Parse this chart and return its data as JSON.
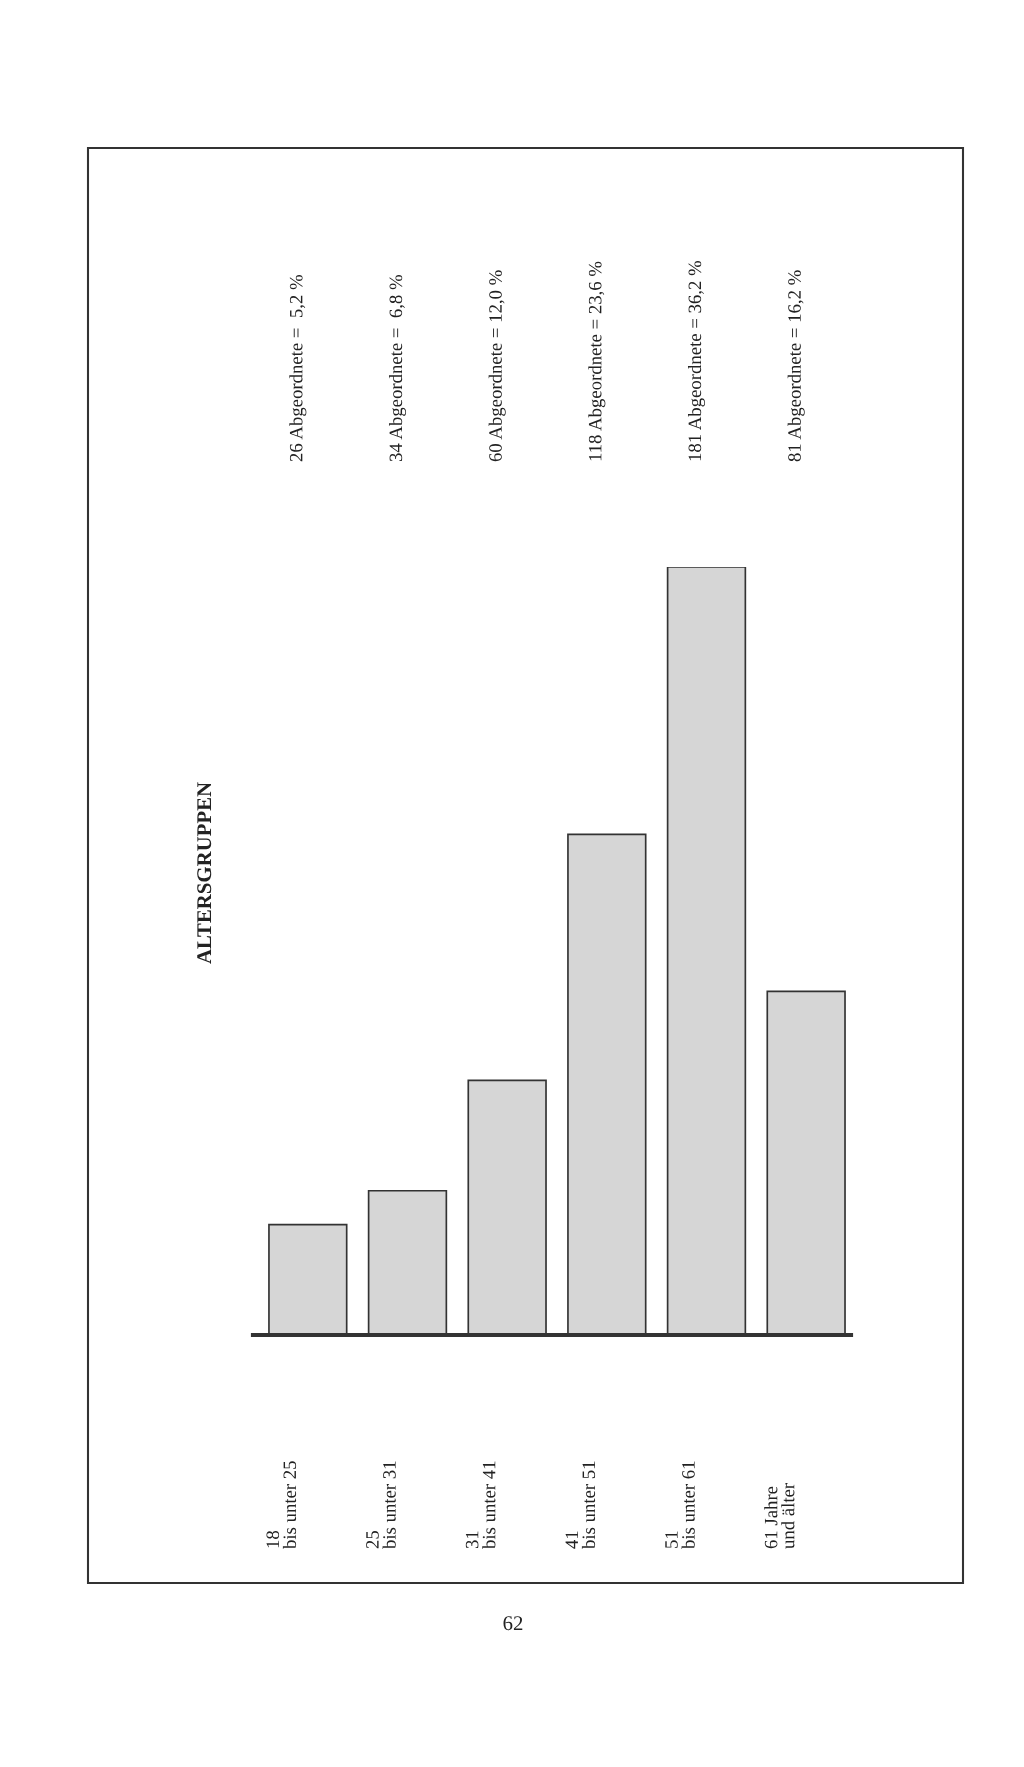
{
  "chart_data": {
    "type": "bar",
    "title": "ALTERSGRUPPEN",
    "categories": [
      "18\nbis unter 25",
      "25\nbis unter 31",
      "31\nbis unter 41",
      "41\nbis unter 51",
      "51\nbis unter 61",
      "61 Jahre\nund älter"
    ],
    "values": [
      26,
      34,
      60,
      118,
      181,
      81
    ],
    "value_labels": [
      "26 Abgeordnete =  5,2 %",
      "34 Abgeordnete =  6,8 %",
      "60 Abgeordnete = 12,0 %",
      "118 Abgeordnete = 23,6 %",
      "181 Abgeordnete = 36,2 %",
      "81 Abgeordnete = 16,2 %"
    ],
    "color": "#d6d6d6",
    "annotations": [
      "62"
    ]
  }
}
